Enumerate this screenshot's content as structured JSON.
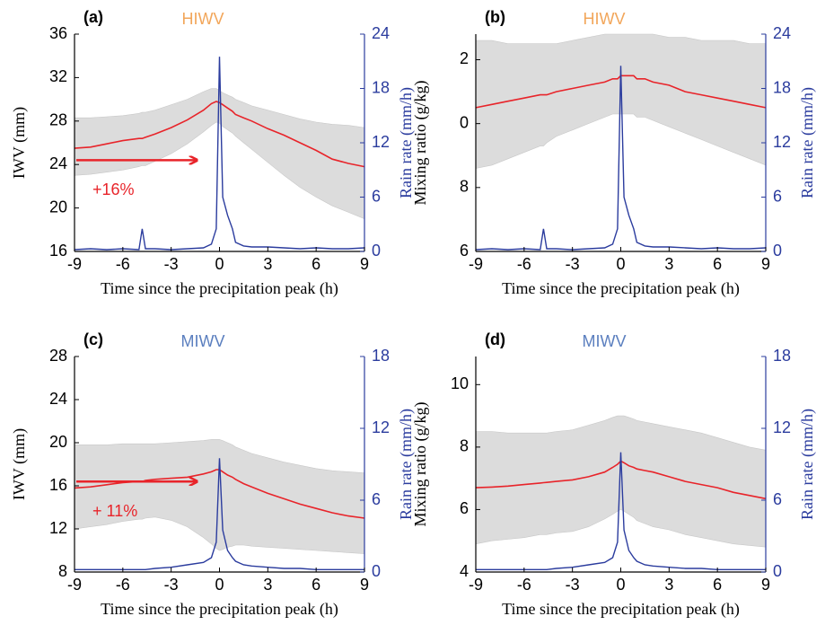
{
  "chart_data": [
    {
      "type": "line",
      "label": "(a)",
      "title": "HIWV",
      "title_color": "#f2a65a",
      "xlabel": "Time since the precipitation peak (h)",
      "ylabel": "IWV (mm)",
      "y2label": "Rain rate (mm/h)",
      "annotation": {
        "text": "+16%",
        "color": "#e8242a"
      },
      "x": [
        -9,
        -8,
        -7,
        -6,
        -5,
        -4.8,
        -4.6,
        -4,
        -3,
        -2,
        -1,
        -0.5,
        -0.2,
        0,
        0.2,
        0.5,
        0.8,
        1,
        1.5,
        2,
        3,
        4,
        5,
        6,
        7,
        8,
        9
      ],
      "xlim": [
        -9,
        9
      ],
      "xticks": [
        -9,
        -6,
        -3,
        0,
        3,
        6,
        9
      ],
      "ylim": [
        16,
        36
      ],
      "yticks": [
        16,
        20,
        24,
        28,
        32,
        36
      ],
      "y2lim": [
        0,
        24
      ],
      "y2ticks": [
        0,
        6,
        12,
        18,
        24
      ],
      "series": [
        {
          "kind": "band",
          "color": "#dcdcdc",
          "upper": [
            28.3,
            28.3,
            28.4,
            28.5,
            28.7,
            28.8,
            28.8,
            29.0,
            29.5,
            30.0,
            30.7,
            31.0,
            31.0,
            30.8,
            30.6,
            30.4,
            30.2,
            30.0,
            29.7,
            29.4,
            29.0,
            28.6,
            28.2,
            27.9,
            27.7,
            27.6,
            27.4
          ],
          "lower": [
            23.0,
            23.1,
            23.3,
            23.5,
            23.8,
            23.9,
            23.9,
            24.3,
            25.0,
            25.9,
            27.0,
            27.6,
            27.9,
            27.8,
            27.5,
            27.2,
            26.9,
            26.6,
            26.0,
            25.4,
            24.2,
            23.0,
            21.9,
            21.0,
            20.2,
            19.6,
            19.0
          ]
        },
        {
          "kind": "line",
          "color": "#e8242a",
          "values": [
            25.5,
            25.6,
            25.9,
            26.2,
            26.4,
            26.4,
            26.5,
            26.8,
            27.4,
            28.1,
            29.0,
            29.6,
            29.8,
            29.7,
            29.5,
            29.2,
            28.9,
            28.6,
            28.3,
            28.0,
            27.3,
            26.7,
            26.0,
            25.3,
            24.5,
            24.1,
            23.8
          ]
        },
        {
          "kind": "line",
          "color": "#2b3c9e",
          "axis": "y2",
          "values": [
            0.2,
            0.3,
            0.2,
            0.3,
            0.2,
            2.5,
            0.3,
            0.3,
            0.2,
            0.3,
            0.4,
            0.8,
            2.5,
            21.5,
            6.0,
            4.0,
            2.5,
            1.0,
            0.6,
            0.5,
            0.5,
            0.4,
            0.3,
            0.4,
            0.3,
            0.3,
            0.4
          ]
        }
      ]
    },
    {
      "type": "line",
      "label": "(b)",
      "title": "HIWV",
      "title_color": "#f2a65a",
      "xlabel": "Time since the precipitation peak (h)",
      "ylabel": "Mixing ratio (g/kg)",
      "y2label": "Rain rate (mm/h)",
      "x": [
        -9,
        -8,
        -7,
        -6,
        -5,
        -4.8,
        -4.6,
        -4,
        -3,
        -2,
        -1,
        -0.5,
        -0.2,
        0,
        0.2,
        0.5,
        0.8,
        1,
        1.5,
        2,
        3,
        4,
        5,
        6,
        7,
        8,
        9
      ],
      "xlim": [
        -9,
        9
      ],
      "xticks": [
        -9,
        -6,
        -3,
        0,
        3,
        6,
        9
      ],
      "ylim": [
        6,
        12.8
      ],
      "yticks": [
        6,
        8,
        {
          "value": 10,
          "label": "0"
        },
        {
          "value": 12,
          "label": "2"
        }
      ],
      "y2lim": [
        0,
        24
      ],
      "y2ticks": [
        0,
        6,
        12,
        18,
        24
      ],
      "series": [
        {
          "kind": "band",
          "color": "#dcdcdc",
          "upper": [
            12.6,
            12.6,
            12.5,
            12.5,
            12.5,
            12.5,
            12.5,
            12.5,
            12.6,
            12.7,
            12.8,
            12.8,
            12.8,
            12.8,
            12.8,
            12.8,
            12.8,
            12.8,
            12.8,
            12.8,
            12.7,
            12.7,
            12.6,
            12.6,
            12.6,
            12.5,
            12.5
          ],
          "lower": [
            8.6,
            8.7,
            8.9,
            9.1,
            9.3,
            9.3,
            9.4,
            9.6,
            9.8,
            10.0,
            10.2,
            10.3,
            10.3,
            10.3,
            10.3,
            10.3,
            10.3,
            10.2,
            10.2,
            10.1,
            9.9,
            9.7,
            9.5,
            9.3,
            9.1,
            8.9,
            8.7
          ]
        },
        {
          "kind": "line",
          "color": "#e8242a",
          "values": [
            10.5,
            10.6,
            10.7,
            10.8,
            10.9,
            10.9,
            10.9,
            11.0,
            11.1,
            11.2,
            11.3,
            11.4,
            11.4,
            11.5,
            11.5,
            11.5,
            11.5,
            11.4,
            11.4,
            11.3,
            11.2,
            11.0,
            10.9,
            10.8,
            10.7,
            10.6,
            10.5
          ]
        },
        {
          "kind": "line",
          "color": "#2b3c9e",
          "axis": "y2",
          "values": [
            0.2,
            0.3,
            0.2,
            0.3,
            0.2,
            2.5,
            0.3,
            0.3,
            0.2,
            0.3,
            0.4,
            0.8,
            2.5,
            20.5,
            6.0,
            4.0,
            2.5,
            1.0,
            0.6,
            0.5,
            0.5,
            0.4,
            0.3,
            0.4,
            0.3,
            0.3,
            0.4
          ]
        }
      ]
    },
    {
      "type": "line",
      "label": "(c)",
      "title": "MIWV",
      "title_color": "#5b7fbf",
      "xlabel": "Time since the precipitation peak (h)",
      "ylabel": "IWV (mm)",
      "y2label": "Rain rate (mm/h)",
      "annotation": {
        "text": "+ 11%",
        "color": "#e8242a"
      },
      "x": [
        -9,
        -8,
        -7,
        -6,
        -5,
        -4.8,
        -4.6,
        -4,
        -3,
        -2,
        -1,
        -0.5,
        -0.2,
        0,
        0.2,
        0.5,
        0.8,
        1,
        1.5,
        2,
        3,
        4,
        5,
        6,
        7,
        8,
        9
      ],
      "xlim": [
        -9,
        9
      ],
      "xticks": [
        -9,
        -6,
        -3,
        0,
        3,
        6,
        9
      ],
      "ylim": [
        8,
        28
      ],
      "yticks": [
        8,
        12,
        16,
        20,
        24,
        28
      ],
      "y2lim": [
        0,
        18
      ],
      "y2ticks": [
        0,
        6,
        12,
        18
      ],
      "series": [
        {
          "kind": "band",
          "color": "#dcdcdc",
          "upper": [
            19.8,
            19.8,
            19.8,
            19.9,
            19.9,
            19.9,
            19.9,
            19.9,
            20.0,
            20.1,
            20.2,
            20.3,
            20.3,
            20.3,
            20.2,
            20.0,
            19.8,
            19.6,
            19.3,
            19.0,
            18.6,
            18.2,
            17.9,
            17.6,
            17.4,
            17.3,
            17.2
          ],
          "lower": [
            12.0,
            12.2,
            12.4,
            12.7,
            12.9,
            12.9,
            13.0,
            13.1,
            12.8,
            12.2,
            11.2,
            10.6,
            10.2,
            10.0,
            10.1,
            10.3,
            10.4,
            10.5,
            10.5,
            10.4,
            10.3,
            10.2,
            10.1,
            10.0,
            9.9,
            9.8,
            9.7
          ]
        },
        {
          "kind": "line",
          "color": "#e8242a",
          "values": [
            15.8,
            15.9,
            16.1,
            16.3,
            16.4,
            16.4,
            16.5,
            16.6,
            16.7,
            16.8,
            17.1,
            17.3,
            17.5,
            17.5,
            17.3,
            17.0,
            16.8,
            16.6,
            16.2,
            15.9,
            15.3,
            14.8,
            14.3,
            13.9,
            13.5,
            13.2,
            13.0
          ]
        },
        {
          "kind": "line",
          "color": "#2b3c9e",
          "axis": "y2",
          "values": [
            0.2,
            0.2,
            0.2,
            0.2,
            0.2,
            0.2,
            0.2,
            0.3,
            0.4,
            0.6,
            0.8,
            1.2,
            2.5,
            9.5,
            3.5,
            1.8,
            1.2,
            0.9,
            0.6,
            0.5,
            0.4,
            0.3,
            0.3,
            0.2,
            0.2,
            0.2,
            0.2
          ]
        }
      ]
    },
    {
      "type": "line",
      "label": "(d)",
      "title": "MIWV",
      "title_color": "#5b7fbf",
      "xlabel": "Time since the precipitation peak (h)",
      "ylabel": "Mixing ratio (g/kg)",
      "y2label": "Rain rate (mm/h)",
      "x": [
        -9,
        -8,
        -7,
        -6,
        -5,
        -4.8,
        -4.6,
        -4,
        -3,
        -2,
        -1,
        -0.5,
        -0.2,
        0,
        0.2,
        0.5,
        0.8,
        1,
        1.5,
        2,
        3,
        4,
        5,
        6,
        7,
        8,
        9
      ],
      "xlim": [
        -9,
        9
      ],
      "xticks": [
        -9,
        -6,
        -3,
        0,
        3,
        6,
        9
      ],
      "ylim": [
        4,
        10.9
      ],
      "yticks": [
        4,
        6,
        8,
        10
      ],
      "y2lim": [
        0,
        18
      ],
      "y2ticks": [
        0,
        6,
        12,
        18
      ],
      "series": [
        {
          "kind": "band",
          "color": "#dcdcdc",
          "upper": [
            8.5,
            8.5,
            8.45,
            8.45,
            8.45,
            8.45,
            8.45,
            8.5,
            8.55,
            8.7,
            8.85,
            8.95,
            9.0,
            9.0,
            9.0,
            8.95,
            8.9,
            8.85,
            8.8,
            8.75,
            8.65,
            8.55,
            8.45,
            8.3,
            8.15,
            8.0,
            7.9
          ],
          "lower": [
            4.9,
            5.0,
            5.05,
            5.1,
            5.2,
            5.2,
            5.2,
            5.25,
            5.3,
            5.45,
            5.7,
            5.85,
            5.95,
            6.0,
            5.95,
            5.85,
            5.75,
            5.65,
            5.55,
            5.45,
            5.35,
            5.2,
            5.1,
            5.0,
            4.9,
            4.85,
            4.8
          ]
        },
        {
          "kind": "line",
          "color": "#e8242a",
          "values": [
            6.7,
            6.72,
            6.75,
            6.8,
            6.85,
            6.86,
            6.87,
            6.9,
            6.95,
            7.05,
            7.2,
            7.35,
            7.45,
            7.55,
            7.5,
            7.4,
            7.35,
            7.3,
            7.25,
            7.2,
            7.05,
            6.9,
            6.8,
            6.7,
            6.55,
            6.45,
            6.35
          ]
        },
        {
          "kind": "line",
          "color": "#2b3c9e",
          "axis": "y2",
          "values": [
            0.2,
            0.2,
            0.2,
            0.2,
            0.2,
            0.2,
            0.2,
            0.3,
            0.4,
            0.6,
            0.8,
            1.2,
            2.5,
            10.0,
            3.5,
            1.8,
            1.2,
            0.9,
            0.6,
            0.5,
            0.4,
            0.3,
            0.3,
            0.2,
            0.2,
            0.2,
            0.2
          ]
        }
      ]
    }
  ]
}
